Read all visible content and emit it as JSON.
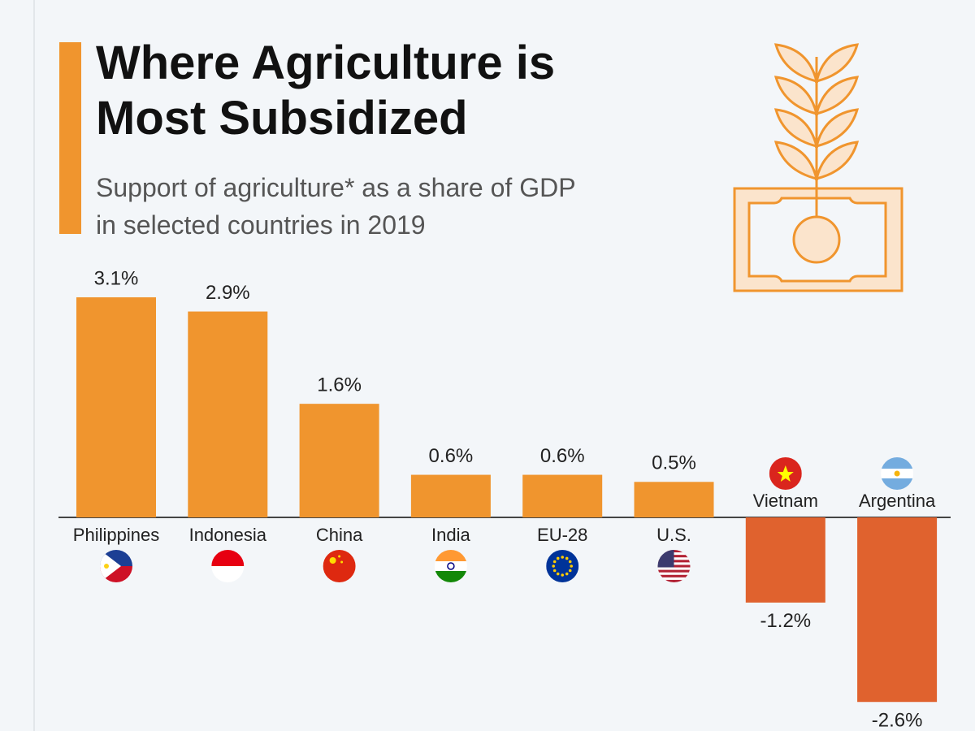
{
  "chart_data": {
    "type": "bar",
    "title": "Where Agriculture is Most Subsidized",
    "subtitle": "Support of agriculture* as a share of GDP in selected countries in 2019",
    "categories": [
      "Philippines",
      "Indonesia",
      "China",
      "India",
      "EU-28",
      "U.S.",
      "Vietnam",
      "Argentina"
    ],
    "values": [
      3.1,
      2.9,
      1.6,
      0.6,
      0.6,
      0.5,
      -1.2,
      -2.6
    ],
    "value_labels": [
      "3.1%",
      "2.9%",
      "1.6%",
      "0.6%",
      "0.6%",
      "0.5%",
      "-1.2%",
      "-2.6%"
    ],
    "color": "#f0952e",
    "negative_color": "#e0622e"
  }
}
